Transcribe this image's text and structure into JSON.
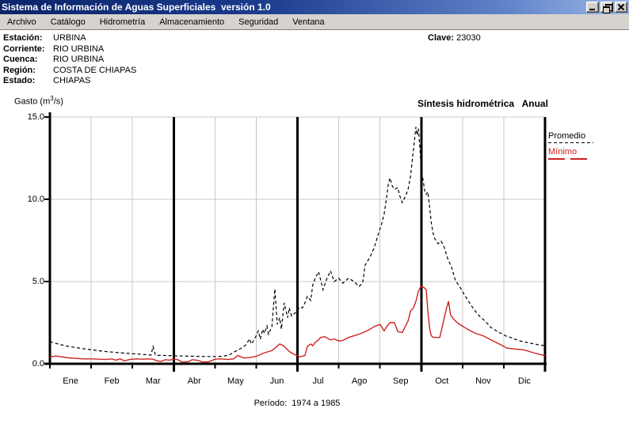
{
  "window": {
    "title": "Sistema de Información de Aguas Superficiales  versión 1.0"
  },
  "menu": {
    "items": [
      "Archivo",
      "Catálogo",
      "Hidrometría",
      "Almacenamiento",
      "Seguridad",
      "Ventana"
    ]
  },
  "station": {
    "rows": [
      {
        "label": "Estación:",
        "value": "URBINA"
      },
      {
        "label": "Corriente:",
        "value": "RIO URBINA"
      },
      {
        "label": "Cuenca:",
        "value": "RIO URBINA"
      },
      {
        "label": "Región:",
        "value": "COSTA DE CHIAPAS"
      },
      {
        "label": "Estado:",
        "value": "CHIAPAS"
      }
    ],
    "clave_label": "Clave:",
    "clave_value": "23030"
  },
  "chart": {
    "gasto_prefix": "Gasto (m",
    "gasto_sup": "3",
    "gasto_suffix": "/s)",
    "title": "Síntesis hidrométrica   Anual",
    "period": "Período:  1974 a 1985"
  },
  "chart_data": {
    "type": "line",
    "title": "Síntesis hidrométrica  Anual",
    "ylabel": "Gasto (m3/s)",
    "xlabel": "",
    "ylim": [
      0,
      15
    ],
    "yticks": [
      0,
      5,
      10,
      15
    ],
    "ytick_labels": [
      "0.0",
      "5.0",
      "10.0",
      "15.0"
    ],
    "categories": [
      "Ene",
      "Feb",
      "Mar",
      "Abr",
      "May",
      "Jun",
      "Jul",
      "Ago",
      "Sep",
      "Oct",
      "Nov",
      "Dic"
    ],
    "x_range_months": [
      0,
      12
    ],
    "quarter_dividers_at_months": [
      3,
      6,
      9
    ],
    "grid": "on",
    "legend_position": "right",
    "period_note": "Período: 1974 a 1985",
    "series": [
      {
        "name": "Promedio",
        "color": "#000000",
        "style": "dashed",
        "points": [
          [
            0,
            1.35
          ],
          [
            0.2,
            1.2
          ],
          [
            0.4,
            1.08
          ],
          [
            0.6,
            1.0
          ],
          [
            0.8,
            0.92
          ],
          [
            1,
            0.85
          ],
          [
            1.2,
            0.79
          ],
          [
            1.4,
            0.73
          ],
          [
            1.6,
            0.69
          ],
          [
            1.8,
            0.65
          ],
          [
            2,
            0.61
          ],
          [
            2.2,
            0.58
          ],
          [
            2.35,
            0.55
          ],
          [
            2.45,
            0.53
          ],
          [
            2.5,
            1.05
          ],
          [
            2.56,
            0.52
          ],
          [
            2.7,
            0.51
          ],
          [
            2.85,
            0.5
          ],
          [
            3,
            0.49
          ],
          [
            3.2,
            0.47
          ],
          [
            3.4,
            0.46
          ],
          [
            3.6,
            0.45
          ],
          [
            3.8,
            0.44
          ],
          [
            4,
            0.44
          ],
          [
            4.2,
            0.45
          ],
          [
            4.35,
            0.55
          ],
          [
            4.45,
            0.7
          ],
          [
            4.55,
            0.82
          ],
          [
            4.67,
            1.0
          ],
          [
            4.74,
            1.12
          ],
          [
            4.8,
            1.35
          ],
          [
            4.84,
            1.52
          ],
          [
            4.88,
            1.2
          ],
          [
            4.95,
            1.45
          ],
          [
            5,
            1.7
          ],
          [
            5.05,
            2.0
          ],
          [
            5.1,
            1.5
          ],
          [
            5.16,
            2.1
          ],
          [
            5.2,
            1.85
          ],
          [
            5.26,
            2.3
          ],
          [
            5.3,
            1.8
          ],
          [
            5.38,
            2.25
          ],
          [
            5.45,
            4.55
          ],
          [
            5.51,
            2.4
          ],
          [
            5.57,
            2.8
          ],
          [
            5.61,
            2.1
          ],
          [
            5.68,
            3.7
          ],
          [
            5.76,
            2.8
          ],
          [
            5.8,
            3.4
          ],
          [
            5.86,
            2.9
          ],
          [
            5.99,
            3.2
          ],
          [
            6.05,
            3.45
          ],
          [
            6.12,
            3.4
          ],
          [
            6.18,
            3.7
          ],
          [
            6.24,
            4.1
          ],
          [
            6.32,
            3.85
          ],
          [
            6.37,
            4.8
          ],
          [
            6.43,
            5.2
          ],
          [
            6.51,
            5.6
          ],
          [
            6.62,
            4.5
          ],
          [
            6.7,
            5.1
          ],
          [
            6.8,
            5.65
          ],
          [
            6.89,
            5.0
          ],
          [
            7,
            5.2
          ],
          [
            7.1,
            4.9
          ],
          [
            7.24,
            5.2
          ],
          [
            7.37,
            5.0
          ],
          [
            7.49,
            4.7
          ],
          [
            7.58,
            4.9
          ],
          [
            7.64,
            6.0
          ],
          [
            7.76,
            6.5
          ],
          [
            7.85,
            7.0
          ],
          [
            7.95,
            7.8
          ],
          [
            8.04,
            8.5
          ],
          [
            8.1,
            9.1
          ],
          [
            8.16,
            10.1
          ],
          [
            8.2,
            10.9
          ],
          [
            8.24,
            11.3
          ],
          [
            8.3,
            10.8
          ],
          [
            8.35,
            10.6
          ],
          [
            8.43,
            10.7
          ],
          [
            8.48,
            10.2
          ],
          [
            8.54,
            9.8
          ],
          [
            8.62,
            10.2
          ],
          [
            8.68,
            10.6
          ],
          [
            8.74,
            11.4
          ],
          [
            8.81,
            13.0
          ],
          [
            8.87,
            14.4
          ],
          [
            8.9,
            13.9
          ],
          [
            8.93,
            14.3
          ],
          [
            8.97,
            13.0
          ],
          [
            9.0,
            11.8
          ],
          [
            9.03,
            11.4
          ],
          [
            9.09,
            10.45
          ],
          [
            9.12,
            10.3
          ],
          [
            9.16,
            10.45
          ],
          [
            9.2,
            9.6
          ],
          [
            9.24,
            8.6
          ],
          [
            9.29,
            7.9
          ],
          [
            9.33,
            7.6
          ],
          [
            9.41,
            7.3
          ],
          [
            9.48,
            7.45
          ],
          [
            9.54,
            7.2
          ],
          [
            9.64,
            6.4
          ],
          [
            9.73,
            5.9
          ],
          [
            9.83,
            5.05
          ],
          [
            9.93,
            4.7
          ],
          [
            10.02,
            4.3
          ],
          [
            10.12,
            3.9
          ],
          [
            10.21,
            3.55
          ],
          [
            10.31,
            3.2
          ],
          [
            10.41,
            2.9
          ],
          [
            10.5,
            2.7
          ],
          [
            10.6,
            2.45
          ],
          [
            10.69,
            2.2
          ],
          [
            10.79,
            2.05
          ],
          [
            10.89,
            1.9
          ],
          [
            10.98,
            1.8
          ],
          [
            11.08,
            1.65
          ],
          [
            11.17,
            1.6
          ],
          [
            11.27,
            1.5
          ],
          [
            11.37,
            1.4
          ],
          [
            11.46,
            1.35
          ],
          [
            11.56,
            1.3
          ],
          [
            11.65,
            1.25
          ],
          [
            11.75,
            1.2
          ],
          [
            11.85,
            1.15
          ],
          [
            12,
            1.1
          ]
        ]
      },
      {
        "name": "Mínimo",
        "color": "#cc2222",
        "style": "solid",
        "points": [
          [
            0,
            0.42
          ],
          [
            0.15,
            0.47
          ],
          [
            0.3,
            0.42
          ],
          [
            0.45,
            0.36
          ],
          [
            0.6,
            0.33
          ],
          [
            0.8,
            0.3
          ],
          [
            1,
            0.3
          ],
          [
            1.2,
            0.28
          ],
          [
            1.35,
            0.26
          ],
          [
            1.5,
            0.3
          ],
          [
            1.6,
            0.22
          ],
          [
            1.7,
            0.3
          ],
          [
            1.8,
            0.18
          ],
          [
            1.95,
            0.27
          ],
          [
            2.1,
            0.3
          ],
          [
            2.25,
            0.28
          ],
          [
            2.4,
            0.3
          ],
          [
            2.5,
            0.28
          ],
          [
            2.6,
            0.18
          ],
          [
            2.7,
            0.15
          ],
          [
            2.8,
            0.25
          ],
          [
            2.9,
            0.22
          ],
          [
            3,
            0.28
          ],
          [
            3.1,
            0.25
          ],
          [
            3.2,
            0.1
          ],
          [
            3.35,
            0.12
          ],
          [
            3.45,
            0.25
          ],
          [
            3.6,
            0.2
          ],
          [
            3.7,
            0.1
          ],
          [
            3.85,
            0.12
          ],
          [
            4,
            0.28
          ],
          [
            4.15,
            0.3
          ],
          [
            4.3,
            0.26
          ],
          [
            4.45,
            0.3
          ],
          [
            4.55,
            0.5
          ],
          [
            4.7,
            0.35
          ],
          [
            4.85,
            0.38
          ],
          [
            5,
            0.45
          ],
          [
            5.18,
            0.65
          ],
          [
            5.38,
            0.8
          ],
          [
            5.5,
            1.05
          ],
          [
            5.57,
            1.2
          ],
          [
            5.66,
            1.1
          ],
          [
            5.8,
            0.75
          ],
          [
            5.9,
            0.6
          ],
          [
            5.99,
            0.5
          ],
          [
            6.05,
            0.42
          ],
          [
            6.18,
            0.5
          ],
          [
            6.24,
            1.05
          ],
          [
            6.32,
            1.2
          ],
          [
            6.37,
            1.1
          ],
          [
            6.43,
            1.3
          ],
          [
            6.51,
            1.45
          ],
          [
            6.56,
            1.6
          ],
          [
            6.66,
            1.65
          ],
          [
            6.8,
            1.45
          ],
          [
            6.9,
            1.5
          ],
          [
            7,
            1.38
          ],
          [
            7.1,
            1.42
          ],
          [
            7.24,
            1.6
          ],
          [
            7.37,
            1.7
          ],
          [
            7.49,
            1.8
          ],
          [
            7.64,
            1.95
          ],
          [
            7.76,
            2.1
          ],
          [
            7.85,
            2.25
          ],
          [
            8,
            2.4
          ],
          [
            8.1,
            2.0
          ],
          [
            8.16,
            2.25
          ],
          [
            8.24,
            2.5
          ],
          [
            8.35,
            2.5
          ],
          [
            8.43,
            1.95
          ],
          [
            8.54,
            1.9
          ],
          [
            8.68,
            2.6
          ],
          [
            8.74,
            3.2
          ],
          [
            8.81,
            3.4
          ],
          [
            8.87,
            3.8
          ],
          [
            8.93,
            4.4
          ],
          [
            8.99,
            4.7
          ],
          [
            9.06,
            4.65
          ],
          [
            9.12,
            4.5
          ],
          [
            9.16,
            3.2
          ],
          [
            9.2,
            2.2
          ],
          [
            9.24,
            1.7
          ],
          [
            9.3,
            1.6
          ],
          [
            9.45,
            1.6
          ],
          [
            9.54,
            2.6
          ],
          [
            9.6,
            3.25
          ],
          [
            9.66,
            3.8
          ],
          [
            9.71,
            3.0
          ],
          [
            9.77,
            2.75
          ],
          [
            9.87,
            2.5
          ],
          [
            9.96,
            2.35
          ],
          [
            10.12,
            2.1
          ],
          [
            10.31,
            1.85
          ],
          [
            10.5,
            1.7
          ],
          [
            10.69,
            1.45
          ],
          [
            10.89,
            1.2
          ],
          [
            11.08,
            0.95
          ],
          [
            11.27,
            0.9
          ],
          [
            11.46,
            0.85
          ],
          [
            11.56,
            0.8
          ],
          [
            11.65,
            0.72
          ],
          [
            11.75,
            0.65
          ],
          [
            11.85,
            0.58
          ],
          [
            12,
            0.5
          ]
        ]
      }
    ]
  }
}
